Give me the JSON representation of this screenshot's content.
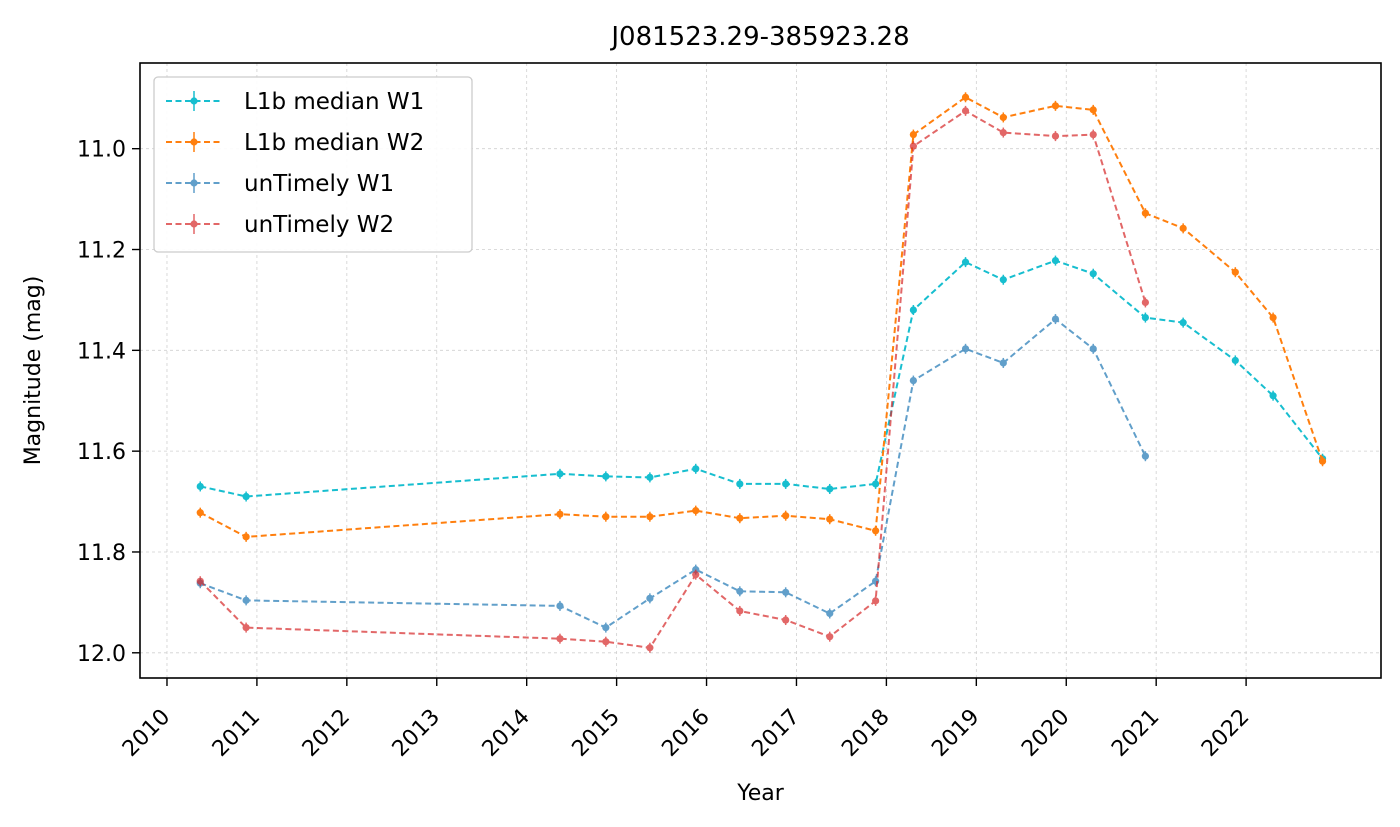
{
  "chart_data": {
    "type": "line",
    "title": "J081523.29-385923.28",
    "xlabel": "Year",
    "ylabel": "Magnitude (mag)",
    "x_ticks": [
      "2010",
      "2011",
      "2012",
      "2013",
      "2014",
      "2015",
      "2016",
      "2017",
      "2018",
      "2019",
      "2020",
      "2021",
      "2022"
    ],
    "y_ticks": [
      "11.0",
      "11.2",
      "11.4",
      "11.6",
      "11.8",
      "12.0"
    ],
    "x_range": [
      2009.7,
      2023.5
    ],
    "y_range": [
      10.83,
      12.05
    ],
    "y_inverted": true,
    "grid": true,
    "legend_position": "top-left",
    "series": [
      {
        "name": "L1b median W1",
        "color": "#17becf",
        "alpha": 1.0,
        "x": [
          2010.37,
          2010.88,
          2014.37,
          2014.88,
          2015.37,
          2015.88,
          2016.37,
          2016.88,
          2017.37,
          2017.88,
          2018.3,
          2018.88,
          2019.3,
          2019.88,
          2020.3,
          2020.88,
          2021.3,
          2021.88,
          2022.3,
          2022.85
        ],
        "y": [
          11.67,
          11.69,
          11.645,
          11.65,
          11.652,
          11.635,
          11.665,
          11.665,
          11.675,
          11.665,
          11.32,
          11.225,
          11.26,
          11.222,
          11.248,
          11.335,
          11.345,
          11.42,
          11.49,
          11.615
        ]
      },
      {
        "name": "L1b median W2",
        "color": "#ff7f0e",
        "alpha": 1.0,
        "x": [
          2010.37,
          2010.88,
          2014.37,
          2014.88,
          2015.37,
          2015.88,
          2016.37,
          2016.88,
          2017.37,
          2017.88,
          2018.3,
          2018.88,
          2019.3,
          2019.88,
          2020.3,
          2020.88,
          2021.3,
          2021.88,
          2022.3,
          2022.85
        ],
        "y": [
          11.722,
          11.77,
          11.725,
          11.73,
          11.73,
          11.718,
          11.733,
          11.728,
          11.735,
          11.758,
          10.972,
          10.898,
          10.938,
          10.915,
          10.923,
          11.128,
          11.158,
          11.245,
          11.335,
          11.62
        ]
      },
      {
        "name": "unTimely W1",
        "color": "#1f77b4",
        "alpha": 0.7,
        "x": [
          2010.37,
          2010.88,
          2014.37,
          2014.88,
          2015.37,
          2015.88,
          2016.37,
          2016.88,
          2017.37,
          2017.88,
          2018.3,
          2018.88,
          2019.3,
          2019.88,
          2020.3,
          2020.88
        ],
        "y": [
          11.862,
          11.896,
          11.907,
          11.95,
          11.892,
          11.835,
          11.878,
          11.88,
          11.922,
          11.858,
          11.46,
          11.397,
          11.425,
          11.338,
          11.397,
          11.61
        ]
      },
      {
        "name": "unTimely W2",
        "color": "#d62728",
        "alpha": 0.7,
        "x": [
          2010.37,
          2010.88,
          2014.37,
          2014.88,
          2015.37,
          2015.88,
          2016.37,
          2016.88,
          2017.37,
          2017.88,
          2018.3,
          2018.88,
          2019.3,
          2019.88,
          2020.3,
          2020.88
        ],
        "y": [
          11.858,
          11.95,
          11.972,
          11.978,
          11.99,
          11.845,
          11.917,
          11.935,
          11.968,
          11.897,
          10.995,
          10.925,
          10.968,
          10.975,
          10.972,
          11.305
        ]
      }
    ]
  }
}
